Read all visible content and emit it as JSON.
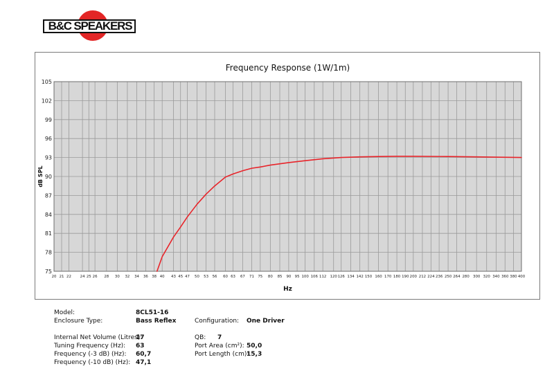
{
  "logo": {
    "text": "B&C SPEAKERS",
    "accent_color": "#e32626"
  },
  "chart_data": {
    "type": "line",
    "title": "Frequency Response (1W/1m)",
    "xlabel": "Hz",
    "ylabel": "dB SPL",
    "x_scale": "log",
    "xlim": [
      20,
      400
    ],
    "ylim": [
      75,
      105
    ],
    "grid": true,
    "y_ticks": [
      "75",
      "78",
      "81",
      "84",
      "87",
      "90",
      "93",
      "96",
      "99",
      "102",
      "105"
    ],
    "x_ticks": [
      "20",
      "21",
      "22",
      "24",
      "25",
      "26",
      "28",
      "30",
      "32",
      "34",
      "36",
      "38",
      "40",
      "43",
      "45",
      "47",
      "50",
      "53",
      "56",
      "60",
      "63",
      "67",
      "71",
      "75",
      "80",
      "85",
      "90",
      "95",
      "100",
      "106",
      "112",
      "120",
      "126",
      "134",
      "142",
      "150",
      "160",
      "170",
      "180",
      "190",
      "200",
      "212",
      "224",
      "236",
      "250",
      "264",
      "280",
      "300",
      "320",
      "340",
      "360",
      "380",
      "400"
    ],
    "series": [
      {
        "color": "#e8242a",
        "x": [
          38.7,
          40,
          43,
          45,
          47,
          50,
          53,
          56,
          60,
          63,
          67,
          71,
          75,
          80,
          90,
          100,
          112,
          126,
          142,
          160,
          180,
          200,
          250,
          300,
          350,
          400
        ],
        "y": [
          75,
          77.3,
          80.4,
          82.0,
          83.6,
          85.6,
          87.2,
          88.5,
          89.9,
          90.4,
          90.9,
          91.3,
          91.5,
          91.8,
          92.2,
          92.5,
          92.8,
          93.0,
          93.1,
          93.15,
          93.2,
          93.2,
          93.15,
          93.1,
          93.05,
          93.0
        ]
      }
    ]
  },
  "specs": {
    "model_label": "Model:",
    "model_value": "8CL51-16",
    "enclosure_label": "Enclosure Type:",
    "enclosure_value": "Bass Reflex",
    "configuration_label": "Configuration:",
    "configuration_value": "One Driver",
    "volume_label": "Internal Net Volume (Litres):",
    "volume_value": "17",
    "qb_label": "QB:",
    "qb_value": "7",
    "tuning_label": "Tuning Frequency (Hz):",
    "tuning_value": "63",
    "port_area_label": "Port Area (cm²):",
    "port_area_value": "50,0",
    "f3_label": "Frequency (-3 dB) (Hz):",
    "f3_value": "60,7",
    "port_length_label": "Port Length (cm):",
    "port_length_value": "15,3",
    "f10_label": "Frequency (-10 dB) (Hz):",
    "f10_value": "47,1"
  }
}
